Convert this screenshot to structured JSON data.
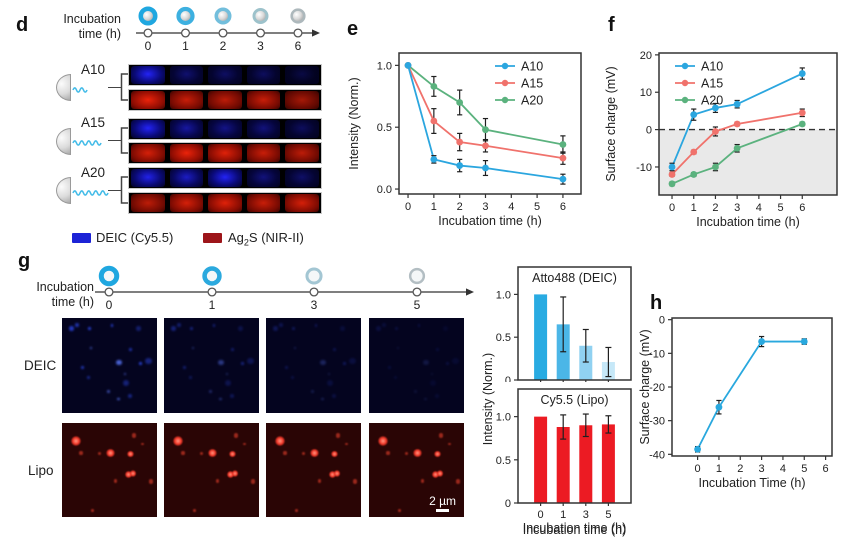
{
  "panel_d": {
    "letter": "d",
    "timeline": {
      "label1": "Incubation",
      "label2": "time (h)",
      "ticks": [
        "0",
        "1",
        "2",
        "3",
        "6"
      ],
      "rings": [
        "#1FA7E0",
        "#3DB0E0",
        "#72BEDC",
        "#9DC2CB",
        "#ADB8BC"
      ]
    },
    "rows": [
      {
        "label": "A10",
        "tail_len": 18,
        "blue": [
          1,
          0.45,
          0.4,
          0.38,
          0.28
        ],
        "red": [
          1,
          0.85,
          0.8,
          0.85,
          0.7
        ]
      },
      {
        "label": "A15",
        "tail_len": 28,
        "blue": [
          1,
          0.65,
          0.55,
          0.5,
          0.38
        ],
        "red": [
          0.9,
          1,
          0.95,
          0.85,
          0.8
        ]
      },
      {
        "label": "A20",
        "tail_len": 38,
        "blue": [
          0.95,
          0.8,
          1,
          0.5,
          0.42
        ],
        "red": [
          0.8,
          0.9,
          0.95,
          0.85,
          0.9
        ]
      }
    ],
    "legend": {
      "deic_label": "DEIC (Cy5.5)",
      "deic_color": "#1C23D6",
      "ag_pre": "Ag",
      "ag_sub": "2",
      "ag_post": "S (NIR-II)",
      "ag_color": "#9D151A"
    }
  },
  "panel_e": {
    "letter": "e"
  },
  "panel_f": {
    "letter": "f"
  },
  "panel_g": {
    "letter": "g",
    "timeline": {
      "label1": "Incubation",
      "label2": "time (h)",
      "ticks": [
        "0",
        "1",
        "3",
        "5"
      ],
      "rings": [
        "#1FA7E0",
        "#2BA9DE",
        "#A3C6D3",
        "#B3BEC3"
      ]
    },
    "row_labels": [
      "DEIC",
      "Lipo"
    ],
    "deic_fade": [
      1,
      0.55,
      0.35,
      0.2
    ],
    "scale_bar": "2 µm",
    "bars_ylabel": "Intensity (Norm.)"
  },
  "panel_h": {
    "letter": "h"
  },
  "chart_data": [
    {
      "id": "e",
      "type": "line",
      "xlabel": "Incubation time (h)",
      "ylabel": "Intensity (Norm.)",
      "x": [
        0,
        1,
        2,
        3,
        6
      ],
      "xticks": [
        0,
        1,
        2,
        3,
        4,
        5,
        6
      ],
      "xtick_labels": [
        "0",
        "1",
        "2",
        "3",
        "4",
        "5",
        "6"
      ],
      "yticks": [
        0,
        0.5,
        1
      ],
      "ytick_labels": [
        "0.0",
        "0.5",
        "1.0"
      ],
      "xlim": [
        -0.35,
        6.7
      ],
      "ylim": [
        -0.04,
        1.1
      ],
      "legend_position": "top-right",
      "grid": false,
      "series": [
        {
          "name": "A10",
          "color": "#2BA6DF",
          "values": [
            1,
            0.24,
            0.19,
            0.17,
            0.08
          ],
          "errors": [
            0,
            0.03,
            0.05,
            0.06,
            0.04
          ]
        },
        {
          "name": "A15",
          "color": "#F0726C",
          "values": [
            1,
            0.55,
            0.38,
            0.35,
            0.25
          ],
          "errors": [
            0,
            0.1,
            0.07,
            0.05,
            0.05
          ]
        },
        {
          "name": "A20",
          "color": "#5BB27E",
          "values": [
            1,
            0.83,
            0.7,
            0.48,
            0.36
          ],
          "errors": [
            0,
            0.08,
            0.1,
            0.09,
            0.07
          ]
        }
      ]
    },
    {
      "id": "f",
      "type": "line",
      "xlabel": "Incubation time (h)",
      "ylabel": "Surface charge (mV)",
      "x": [
        0,
        1,
        2,
        3,
        6
      ],
      "xticks": [
        0,
        1,
        2,
        3,
        4,
        5,
        6
      ],
      "xtick_labels": [
        "0",
        "1",
        "2",
        "3",
        "4",
        "5",
        "6"
      ],
      "yticks": [
        -10,
        0,
        10,
        20
      ],
      "ytick_labels": [
        "-10",
        "0",
        "10",
        "20"
      ],
      "xlim": [
        -0.6,
        7.6
      ],
      "ylim": [
        -17.5,
        20.5
      ],
      "legend_position": "top-left",
      "zero_dashed_line": true,
      "shade_below_zero": true,
      "shade_color": "#e9e9e9",
      "series": [
        {
          "name": "A10",
          "color": "#2BA6DF",
          "values": [
            -10,
            4,
            5.8,
            6.8,
            15
          ],
          "errors": [
            1,
            1.5,
            1.2,
            1,
            1.5
          ]
        },
        {
          "name": "A15",
          "color": "#F0726C",
          "values": [
            -12,
            -6,
            -0.5,
            1.5,
            4.5
          ],
          "errors": [
            0.5,
            0.5,
            1.2,
            0.5,
            1
          ]
        },
        {
          "name": "A20",
          "color": "#5BB27E",
          "values": [
            -14.5,
            -12,
            -10,
            -5,
            1.5
          ],
          "errors": [
            0.5,
            0.5,
            1,
            1,
            0.5
          ]
        }
      ]
    },
    {
      "id": "g_top",
      "type": "bar",
      "title": "Atto488 (DEIC)",
      "categories": [
        "0",
        "1",
        "3",
        "5"
      ],
      "values": [
        1,
        0.65,
        0.4,
        0.21
      ],
      "errors": [
        0,
        0.32,
        0.19,
        0.17
      ],
      "bar_colors": [
        "#29ABE2",
        "#4BB6E7",
        "#90D1F1",
        "#C6E8F8"
      ],
      "yticks": [
        0,
        0.5,
        1
      ],
      "ytick_labels": [
        "0",
        "0.5",
        "1.0"
      ],
      "ylim": [
        0,
        1.32
      ],
      "show_xtick_labels": false
    },
    {
      "id": "g_bottom",
      "type": "bar",
      "title": "Cy5.5 (Lipo)",
      "categories": [
        "0",
        "1",
        "3",
        "5"
      ],
      "values": [
        1,
        0.88,
        0.9,
        0.91
      ],
      "errors": [
        0,
        0.14,
        0.13,
        0.1
      ],
      "bar_colors": [
        "#EC1B23",
        "#EC1B23",
        "#EC1B23",
        "#EC1B23"
      ],
      "yticks": [
        0,
        0.5,
        1
      ],
      "ytick_labels": [
        "0",
        "0.5",
        "1.0"
      ],
      "ylim": [
        0,
        1.32
      ],
      "xlabel": "Incubation time (h)",
      "show_xtick_labels": true
    },
    {
      "id": "h",
      "type": "line",
      "xlabel": "Incubation Time (h)",
      "ylabel": "Surface charge (mV)",
      "x": [
        0,
        1,
        3,
        5
      ],
      "xticks": [
        0,
        1,
        2,
        3,
        4,
        5,
        6
      ],
      "xtick_labels": [
        "0",
        "1",
        "2",
        "3",
        "4",
        "5",
        "6"
      ],
      "yticks": [
        0,
        -10,
        -20,
        -30,
        -40
      ],
      "ytick_labels": [
        "0",
        "-10",
        "-20",
        "-30",
        "-40"
      ],
      "xlim": [
        -1.2,
        6.3
      ],
      "ylim": [
        -40.5,
        0.5
      ],
      "legend_position": "none",
      "series": [
        {
          "name": "",
          "color": "#29A8DE",
          "values": [
            -38.5,
            -26,
            -6.5,
            -6.5
          ],
          "errors": [
            0.8,
            2,
            1.5,
            0.8
          ]
        }
      ]
    }
  ]
}
